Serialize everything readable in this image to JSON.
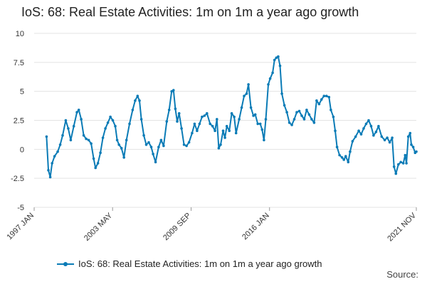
{
  "chart_data": {
    "type": "line",
    "title": "IoS: 68: Real Estate Activities: 1m on 1m a year ago growth",
    "xlabel": "",
    "ylabel": "",
    "ylim": [
      -5,
      10
    ],
    "yticks": [
      "10",
      "7.5",
      "5",
      "2.5",
      "0",
      "-2.5",
      "-5"
    ],
    "xticks": [
      "1997 JAN",
      "2003 MAY",
      "2009 SEP",
      "2016 JAN",
      "2021 NOV"
    ],
    "legend": "bottom",
    "source_label": "Source:",
    "series": [
      {
        "name": "IoS: 68: Real Estate Activities: 1m on 1m a year ago growth",
        "color": "#0a7bb6",
        "points": [
          [
            1998.0,
            1.1
          ],
          [
            1998.15,
            -1.8
          ],
          [
            1998.3,
            -2.4
          ],
          [
            1998.45,
            -1.2
          ],
          [
            1998.65,
            -0.6
          ],
          [
            1998.9,
            -0.2
          ],
          [
            1999.1,
            0.4
          ],
          [
            1999.3,
            1.2
          ],
          [
            1999.55,
            2.5
          ],
          [
            1999.75,
            1.8
          ],
          [
            1999.95,
            0.8
          ],
          [
            2000.2,
            2.0
          ],
          [
            2000.45,
            3.2
          ],
          [
            2000.6,
            3.4
          ],
          [
            2000.8,
            2.6
          ],
          [
            2001.0,
            1.2
          ],
          [
            2001.2,
            0.9
          ],
          [
            2001.4,
            0.8
          ],
          [
            2001.6,
            0.5
          ],
          [
            2001.8,
            -0.8
          ],
          [
            2001.95,
            -1.6
          ],
          [
            2002.15,
            -1.2
          ],
          [
            2002.35,
            -0.3
          ],
          [
            2002.55,
            1.0
          ],
          [
            2002.75,
            1.8
          ],
          [
            2002.95,
            2.3
          ],
          [
            2003.15,
            2.8
          ],
          [
            2003.35,
            2.5
          ],
          [
            2003.55,
            2.0
          ],
          [
            2003.7,
            0.8
          ],
          [
            2003.85,
            0.4
          ],
          [
            2004.05,
            0.1
          ],
          [
            2004.25,
            -0.7
          ],
          [
            2004.45,
            0.8
          ],
          [
            2004.7,
            2.2
          ],
          [
            2004.95,
            3.4
          ],
          [
            2005.15,
            4.2
          ],
          [
            2005.35,
            4.6
          ],
          [
            2005.5,
            4.2
          ],
          [
            2005.65,
            2.6
          ],
          [
            2005.85,
            1.2
          ],
          [
            2006.05,
            0.4
          ],
          [
            2006.25,
            0.6
          ],
          [
            2006.45,
            0.2
          ],
          [
            2006.6,
            -0.4
          ],
          [
            2006.8,
            -1.1
          ],
          [
            2007.05,
            0.2
          ],
          [
            2007.25,
            0.8
          ],
          [
            2007.45,
            0.3
          ],
          [
            2007.7,
            2.4
          ],
          [
            2007.9,
            3.4
          ],
          [
            2008.1,
            5.0
          ],
          [
            2008.25,
            5.1
          ],
          [
            2008.4,
            3.5
          ],
          [
            2008.55,
            2.4
          ],
          [
            2008.7,
            3.1
          ],
          [
            2008.9,
            1.8
          ],
          [
            2009.1,
            0.4
          ],
          [
            2009.3,
            0.3
          ],
          [
            2009.5,
            0.6
          ],
          [
            2009.75,
            1.4
          ],
          [
            2009.95,
            2.2
          ],
          [
            2010.15,
            1.6
          ],
          [
            2010.35,
            2.2
          ],
          [
            2010.55,
            2.8
          ],
          [
            2010.75,
            2.9
          ],
          [
            2010.95,
            3.1
          ],
          [
            2011.2,
            2.2
          ],
          [
            2011.4,
            2.0
          ],
          [
            2011.6,
            1.6
          ],
          [
            2011.75,
            2.6
          ],
          [
            2011.9,
            0.1
          ],
          [
            2012.05,
            0.4
          ],
          [
            2012.25,
            1.6
          ],
          [
            2012.4,
            1.0
          ],
          [
            2012.55,
            2.0
          ],
          [
            2012.75,
            1.6
          ],
          [
            2012.95,
            3.1
          ],
          [
            2013.15,
            2.8
          ],
          [
            2013.3,
            1.4
          ],
          [
            2013.55,
            2.6
          ],
          [
            2013.75,
            3.6
          ],
          [
            2013.95,
            4.6
          ],
          [
            2014.15,
            4.8
          ],
          [
            2014.3,
            5.6
          ],
          [
            2014.5,
            3.6
          ],
          [
            2014.7,
            2.9
          ],
          [
            2014.85,
            3.0
          ],
          [
            2015.05,
            2.2
          ],
          [
            2015.25,
            2.2
          ],
          [
            2015.4,
            1.7
          ],
          [
            2015.55,
            0.8
          ],
          [
            2015.7,
            2.6
          ],
          [
            2015.9,
            5.6
          ],
          [
            2016.05,
            6.1
          ],
          [
            2016.25,
            6.6
          ],
          [
            2016.4,
            7.7
          ],
          [
            2016.55,
            7.9
          ],
          [
            2016.7,
            8.0
          ],
          [
            2016.85,
            7.2
          ],
          [
            2017.0,
            4.8
          ],
          [
            2017.2,
            3.8
          ],
          [
            2017.4,
            3.2
          ],
          [
            2017.6,
            2.3
          ],
          [
            2017.8,
            2.1
          ],
          [
            2018.0,
            2.6
          ],
          [
            2018.2,
            3.2
          ],
          [
            2018.4,
            3.3
          ],
          [
            2018.6,
            2.9
          ],
          [
            2018.8,
            2.6
          ],
          [
            2019.0,
            3.4
          ],
          [
            2019.2,
            3.0
          ],
          [
            2019.4,
            2.6
          ],
          [
            2019.6,
            2.3
          ],
          [
            2019.8,
            4.2
          ],
          [
            2020.0,
            3.9
          ],
          [
            2020.2,
            4.3
          ],
          [
            2020.4,
            4.6
          ],
          [
            2020.6,
            4.6
          ],
          [
            2020.8,
            4.5
          ],
          [
            2020.95,
            3.4
          ],
          [
            2021.15,
            2.8
          ],
          [
            2021.3,
            1.6
          ],
          [
            2021.45,
            0.2
          ],
          [
            2021.65,
            -0.5
          ],
          [
            2021.85,
            -0.7
          ],
          [
            2022.0,
            -0.9
          ],
          [
            2022.15,
            -0.6
          ],
          [
            2022.35,
            -1.1
          ],
          [
            2022.5,
            -0.2
          ],
          [
            2022.7,
            0.7
          ],
          [
            2022.95,
            1.1
          ],
          [
            2023.2,
            1.6
          ],
          [
            2023.4,
            1.3
          ],
          [
            2023.6,
            1.8
          ],
          [
            2023.8,
            2.2
          ],
          [
            2024.0,
            2.5
          ],
          [
            2024.2,
            2.0
          ],
          [
            2024.4,
            1.2
          ],
          [
            2024.6,
            1.5
          ],
          [
            2024.8,
            2.0
          ],
          [
            2025.05,
            1.1
          ],
          [
            2025.3,
            0.8
          ],
          [
            2025.5,
            1.0
          ],
          [
            2025.7,
            0.6
          ],
          [
            2025.9,
            1.0
          ],
          [
            2026.05,
            -1.5
          ],
          [
            2026.2,
            -2.1
          ],
          [
            2026.4,
            -1.3
          ],
          [
            2026.6,
            -1.1
          ],
          [
            2026.8,
            -1.2
          ],
          [
            2026.95,
            -0.5
          ],
          [
            2027.05,
            -1.2
          ],
          [
            2027.2,
            1.1
          ],
          [
            2027.35,
            1.4
          ],
          [
            2027.45,
            0.4
          ],
          [
            2027.6,
            0.2
          ],
          [
            2027.75,
            -0.3
          ],
          [
            2027.85,
            -0.2
          ]
        ]
      }
    ]
  }
}
